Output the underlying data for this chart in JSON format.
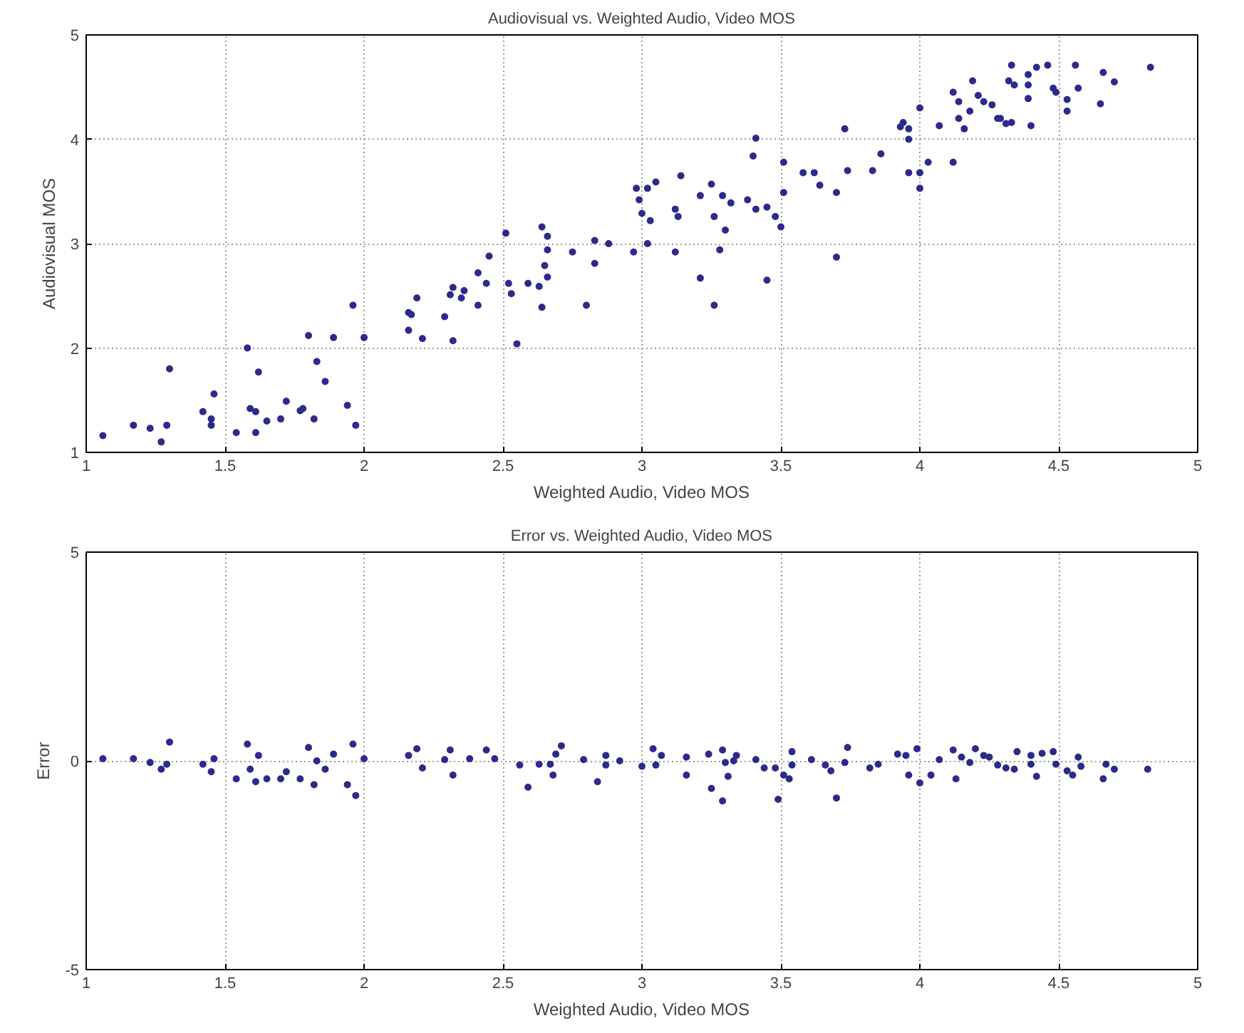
{
  "chart_data": [
    {
      "type": "scatter",
      "title": "Audiovisual vs. Weighted Audio, Video MOS",
      "xlabel": "Weighted Audio, Video MOS",
      "ylabel": "Audiovisual MOS",
      "xlim": [
        1,
        5
      ],
      "ylim": [
        1,
        5
      ],
      "xticks": [
        1,
        1.5,
        2,
        2.5,
        3,
        3.5,
        4,
        4.5,
        5
      ],
      "yticks": [
        1,
        2,
        3,
        4,
        5
      ],
      "grid": true,
      "marker": "circle",
      "series": [
        {
          "color": "#2b2b8c",
          "x": [
            1.06,
            1.17,
            1.23,
            1.27,
            1.29,
            1.3,
            1.42,
            1.45,
            1.45,
            1.46,
            1.54,
            1.58,
            1.59,
            1.61,
            1.62,
            1.61,
            1.65,
            1.7,
            1.72,
            1.77,
            1.78,
            1.8,
            1.82,
            1.83,
            1.86,
            1.89,
            1.94,
            1.96,
            1.97,
            2.0,
            2.16,
            2.16,
            2.17,
            2.19,
            2.21,
            2.29,
            2.32,
            2.31,
            2.32,
            2.35,
            2.36,
            2.41,
            2.41,
            2.44,
            2.45,
            2.51,
            2.52,
            2.53,
            2.55,
            2.59,
            2.63,
            2.64,
            2.64,
            2.65,
            2.66,
            2.66,
            2.66,
            2.75,
            2.8,
            2.83,
            2.83,
            2.88,
            2.97,
            2.99,
            2.98,
            3.0,
            3.02,
            3.03,
            3.05,
            3.02,
            3.12,
            3.12,
            3.13,
            3.14,
            3.21,
            3.21,
            3.25,
            3.26,
            3.26,
            3.28,
            3.29,
            3.3,
            3.32,
            3.38,
            3.4,
            3.41,
            3.41,
            3.45,
            3.45,
            3.48,
            3.5,
            3.51,
            3.51,
            3.58,
            3.62,
            3.64,
            3.7,
            3.7,
            3.73,
            3.74,
            3.83,
            3.86,
            3.93,
            3.94,
            3.96,
            3.96,
            3.96,
            4.0,
            4.0,
            4.0,
            4.03,
            4.07,
            4.12,
            4.12,
            4.14,
            4.14,
            4.16,
            4.18,
            4.19,
            4.21,
            4.23,
            4.26,
            4.28,
            4.29,
            4.31,
            4.33,
            4.33,
            4.32,
            4.34,
            4.39,
            4.39,
            4.39,
            4.4,
            4.42,
            4.46,
            4.48,
            4.49,
            4.53,
            4.53,
            4.56,
            4.57,
            4.65,
            4.66,
            4.7,
            4.83
          ],
          "values": [
            1.16,
            1.26,
            1.23,
            1.1,
            1.26,
            1.8,
            1.39,
            1.32,
            1.26,
            1.56,
            1.19,
            2.0,
            1.42,
            1.39,
            1.77,
            1.19,
            1.3,
            1.32,
            1.49,
            1.4,
            1.42,
            2.12,
            1.32,
            1.87,
            1.68,
            2.1,
            1.45,
            2.41,
            1.26,
            2.1,
            2.17,
            2.34,
            2.32,
            2.48,
            2.09,
            2.3,
            2.58,
            2.51,
            2.07,
            2.48,
            2.55,
            2.41,
            2.72,
            2.62,
            2.88,
            3.1,
            2.62,
            2.52,
            2.04,
            2.62,
            2.59,
            2.39,
            3.16,
            2.79,
            2.68,
            3.07,
            2.94,
            2.92,
            2.41,
            2.81,
            3.03,
            3.0,
            2.92,
            3.42,
            3.53,
            3.29,
            3.53,
            3.22,
            3.59,
            3.0,
            2.92,
            3.33,
            3.26,
            3.65,
            3.46,
            2.67,
            3.57,
            3.26,
            2.41,
            2.94,
            3.46,
            3.13,
            3.39,
            3.42,
            3.84,
            4.01,
            3.33,
            3.35,
            2.65,
            3.26,
            3.16,
            3.49,
            3.78,
            3.68,
            3.68,
            3.56,
            3.49,
            2.87,
            4.1,
            3.7,
            3.7,
            3.86,
            4.12,
            4.16,
            4.1,
            4.0,
            3.68,
            4.3,
            3.68,
            3.53,
            3.78,
            4.13,
            4.45,
            3.78,
            4.36,
            4.2,
            4.1,
            4.27,
            4.56,
            4.42,
            4.36,
            4.33,
            4.2,
            4.2,
            4.15,
            4.16,
            4.71,
            4.56,
            4.52,
            4.62,
            4.52,
            4.39,
            4.13,
            4.69,
            4.71,
            4.49,
            4.45,
            4.38,
            4.27,
            4.71,
            4.49,
            4.34,
            4.64,
            4.55,
            4.69
          ]
        }
      ]
    },
    {
      "type": "scatter",
      "title": "Error vs. Weighted Audio, Video MOS",
      "xlabel": "Weighted Audio, Video MOS",
      "ylabel": "Error",
      "xlim": [
        1,
        5
      ],
      "ylim": [
        -5,
        5
      ],
      "xticks": [
        1,
        1.5,
        2,
        2.5,
        3,
        3.5,
        4,
        4.5,
        5
      ],
      "yticks": [
        -5,
        0,
        5
      ],
      "grid": true,
      "marker": "circle",
      "series": [
        {
          "color": "#2b2b8c",
          "x": [
            1.06,
            1.17,
            1.23,
            1.27,
            1.29,
            1.3,
            1.42,
            1.45,
            1.46,
            1.54,
            1.58,
            1.59,
            1.61,
            1.62,
            1.65,
            1.7,
            1.72,
            1.77,
            1.8,
            1.82,
            1.83,
            1.86,
            1.89,
            1.94,
            1.96,
            1.97,
            2.0,
            2.16,
            2.19,
            2.21,
            2.29,
            2.31,
            2.32,
            2.38,
            2.44,
            2.47,
            2.56,
            2.59,
            2.63,
            2.67,
            2.69,
            2.68,
            2.71,
            2.79,
            2.84,
            2.87,
            2.87,
            2.92,
            3.0,
            3.04,
            3.05,
            3.07,
            3.16,
            3.16,
            3.24,
            3.25,
            3.29,
            3.29,
            3.3,
            3.31,
            3.33,
            3.34,
            3.41,
            3.44,
            3.48,
            3.49,
            3.51,
            3.53,
            3.54,
            3.54,
            3.61,
            3.66,
            3.68,
            3.7,
            3.73,
            3.74,
            3.82,
            3.85,
            3.92,
            3.95,
            3.96,
            3.99,
            4.0,
            4.04,
            4.07,
            4.12,
            4.13,
            4.15,
            4.18,
            4.2,
            4.23,
            4.25,
            4.28,
            4.31,
            4.34,
            4.35,
            4.4,
            4.4,
            4.42,
            4.44,
            4.48,
            4.49,
            4.53,
            4.55,
            4.57,
            4.58,
            4.66,
            4.67,
            4.7,
            4.82
          ],
          "values": [
            0.05,
            0.05,
            -0.04,
            -0.2,
            -0.08,
            0.45,
            -0.08,
            -0.26,
            0.05,
            -0.43,
            0.4,
            -0.2,
            -0.5,
            0.13,
            -0.43,
            -0.43,
            -0.26,
            -0.43,
            0.32,
            -0.57,
            0,
            -0.2,
            0.16,
            -0.57,
            0.4,
            -0.83,
            0.05,
            0.13,
            0.29,
            -0.17,
            0.03,
            0.26,
            -0.34,
            0.05,
            0.26,
            0.05,
            -0.1,
            -0.63,
            -0.08,
            -0.08,
            0.16,
            -0.34,
            0.36,
            0.03,
            -0.5,
            0.13,
            -0.1,
            0,
            -0.13,
            0.29,
            -0.1,
            0.13,
            0.09,
            -0.34,
            0.16,
            -0.66,
            0.26,
            -0.96,
            -0.04,
            -0.37,
            0,
            0.13,
            0.03,
            -0.17,
            -0.17,
            -0.92,
            -0.34,
            -0.43,
            0.22,
            -0.1,
            0.03,
            -0.1,
            -0.24,
            -0.89,
            -0.04,
            0.32,
            -0.17,
            -0.08,
            0.16,
            0.13,
            -0.34,
            0.29,
            -0.53,
            -0.34,
            0.03,
            0.26,
            -0.43,
            0.09,
            -0.04,
            0.29,
            0.13,
            0.09,
            -0.1,
            -0.17,
            -0.2,
            0.22,
            0.13,
            -0.08,
            -0.37,
            0.18,
            0.22,
            -0.08,
            -0.24,
            -0.34,
            0.09,
            -0.13,
            -0.43,
            -0.08,
            -0.2,
            -0.2
          ]
        }
      ]
    }
  ]
}
